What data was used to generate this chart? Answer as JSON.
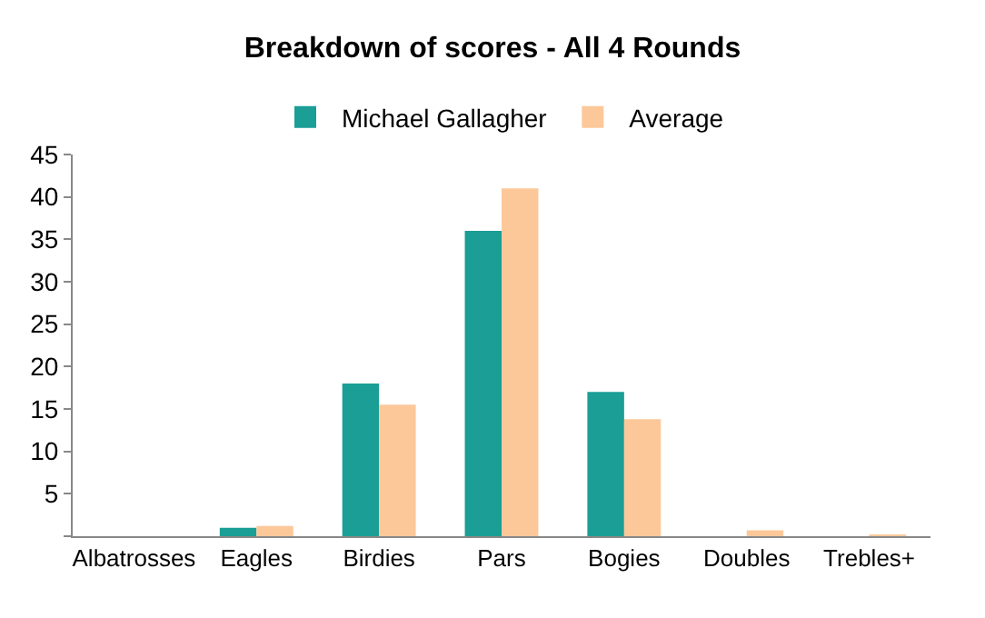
{
  "chart_data": {
    "type": "bar",
    "title": "Breakdown of scores - All 4 Rounds",
    "categories": [
      "Albatrosses",
      "Eagles",
      "Birdies",
      "Pars",
      "Bogies",
      "Doubles",
      "Trebles+"
    ],
    "series": [
      {
        "name": "Michael Gallagher",
        "color": "#1a9e96",
        "values": [
          0,
          1,
          18,
          36,
          17,
          0,
          0
        ]
      },
      {
        "name": "Average",
        "color": "#fcc89a",
        "values": [
          0,
          1.2,
          15.5,
          41,
          13.8,
          0.7,
          0.2
        ]
      }
    ],
    "ylim": [
      0,
      45
    ],
    "yticks": [
      {
        "value": 0,
        "label": null
      },
      5,
      10,
      15,
      20,
      25,
      30,
      35,
      40,
      45
    ],
    "legend": "top"
  }
}
